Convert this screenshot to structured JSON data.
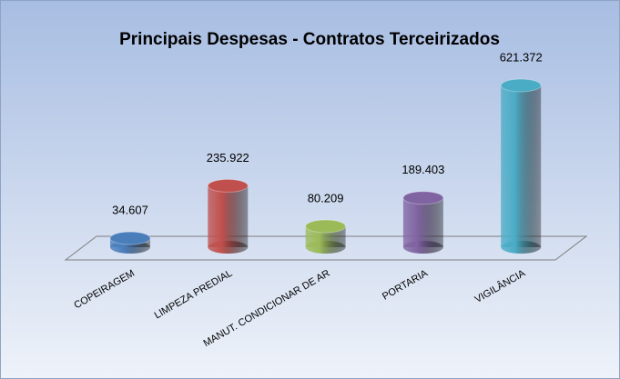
{
  "chart_data": {
    "type": "bar3d",
    "title": "Principais Despesas - Contratos Terceirizados",
    "categories": [
      "COPEIRAGEM",
      "LIMPEZA PREDIAL",
      "MANUT. CONDICIONAR DE AR",
      "PORTARIA",
      "VIGILÂNCIA"
    ],
    "values": [
      34607,
      235922,
      80209,
      189403,
      621372
    ],
    "value_labels": [
      "34.607",
      "235.922",
      "80.209",
      "189.403",
      "621.372"
    ],
    "colors": [
      "#4a7ebb",
      "#c0504d",
      "#9bbb59",
      "#8064a2",
      "#4bacc6"
    ]
  }
}
